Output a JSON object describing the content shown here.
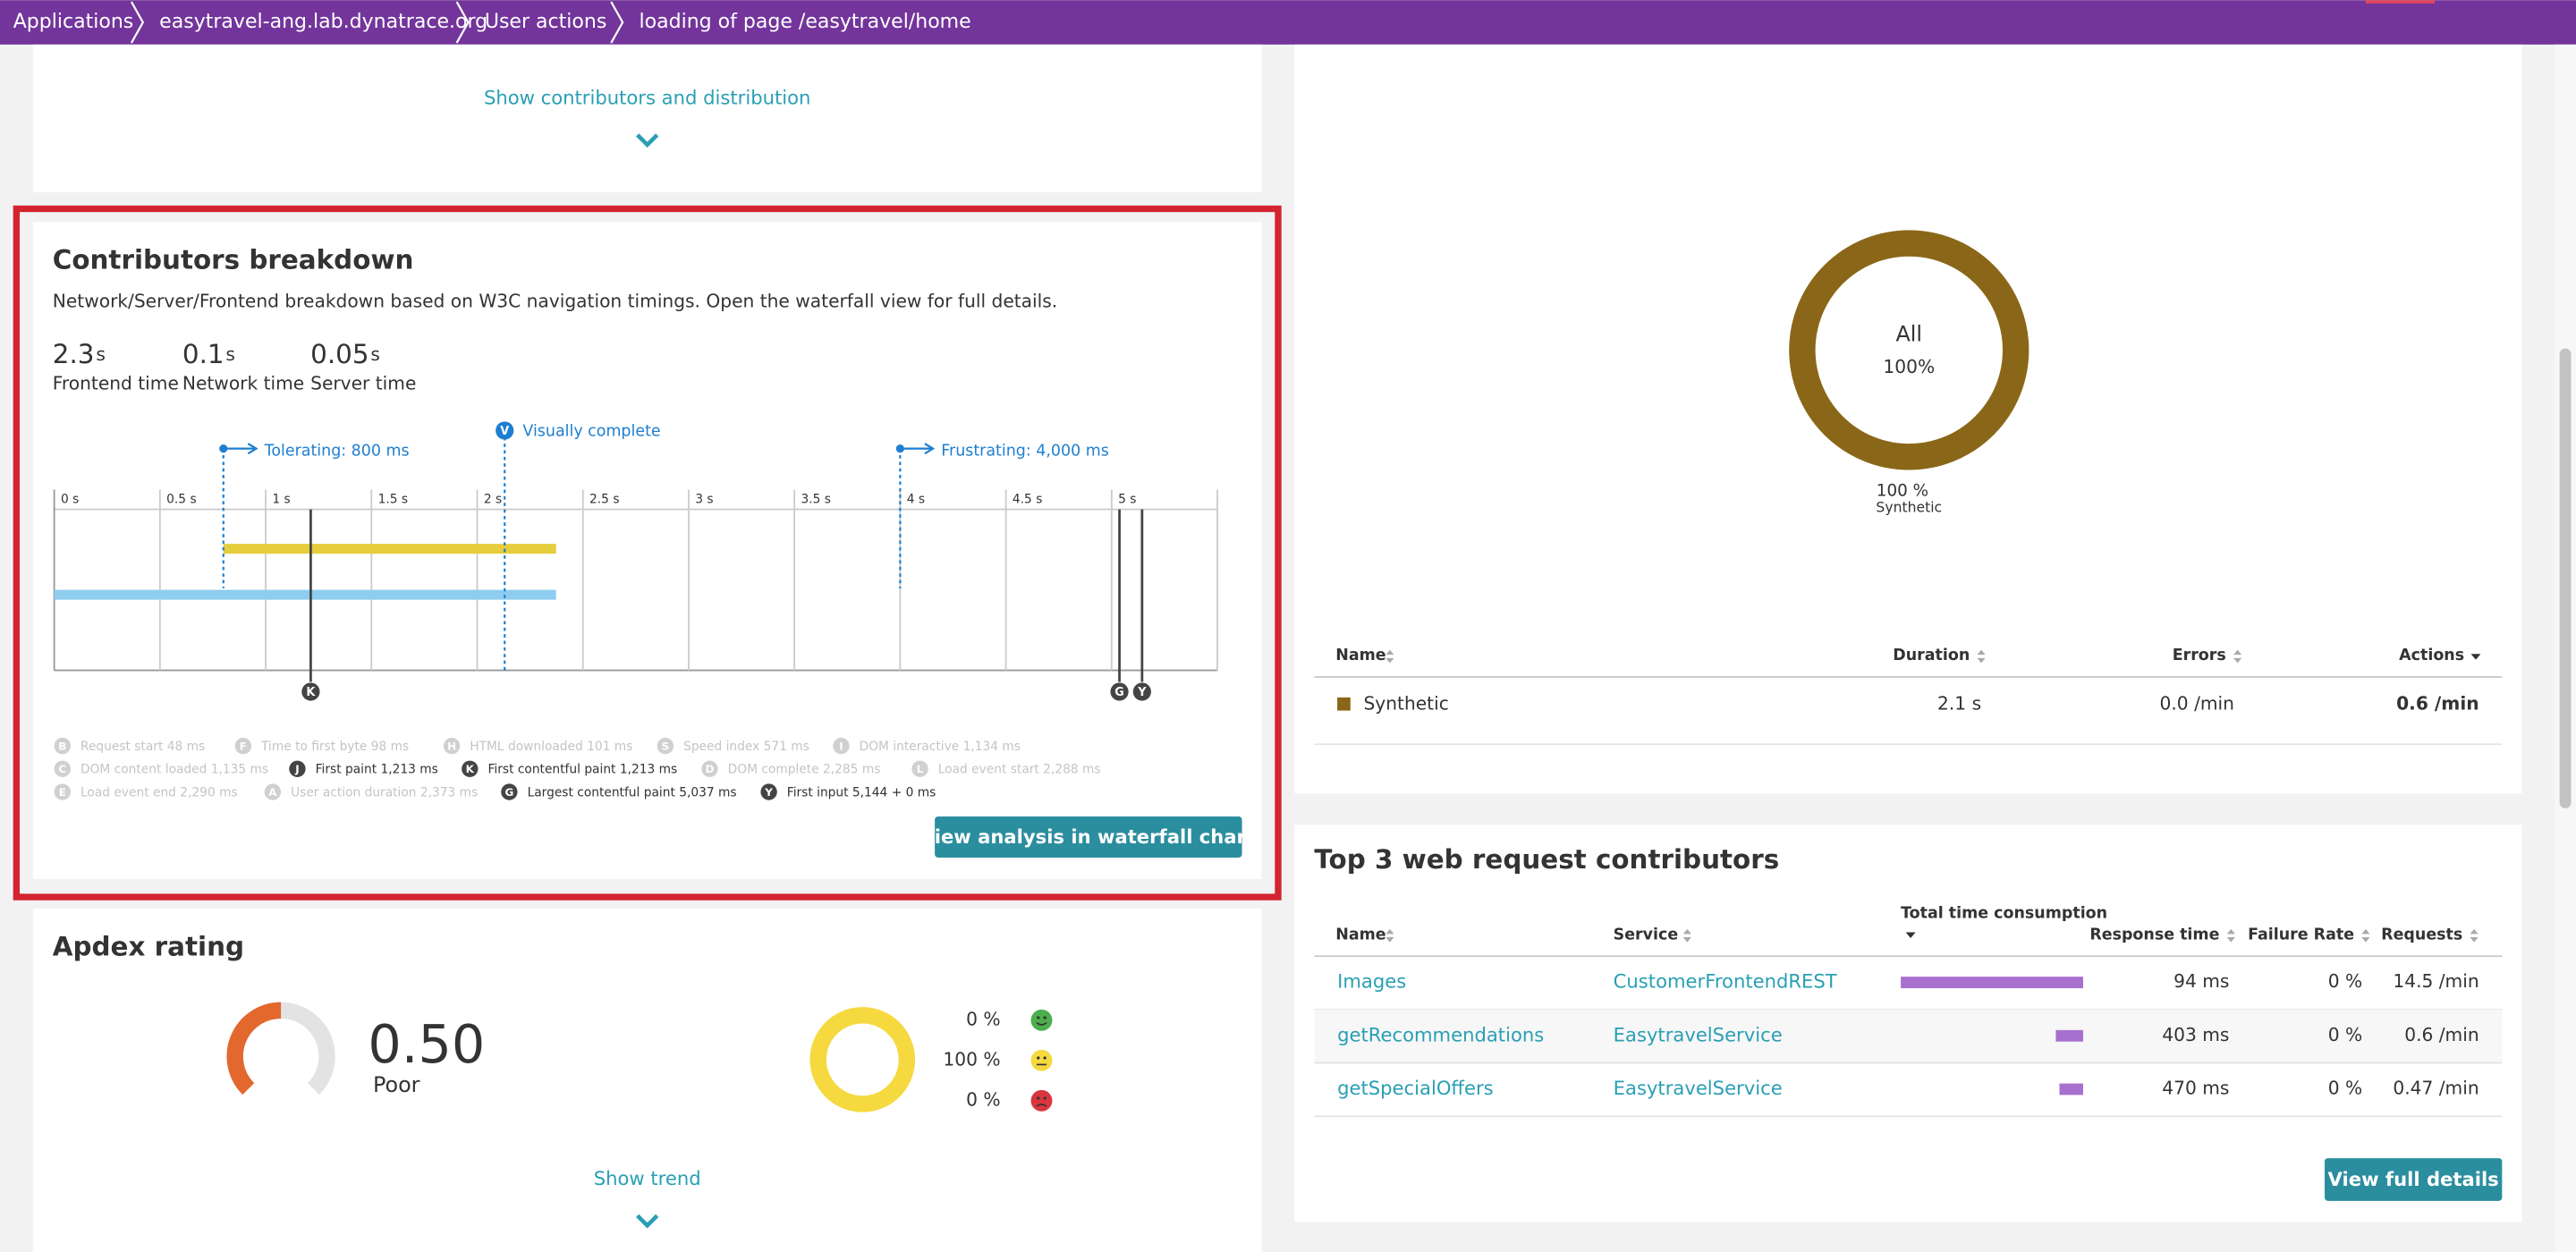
{
  "breadcrumbs": [
    "Applications",
    "easytravel-ang.lab.dynatrace.org",
    "User actions",
    "loading of page /easytravel/home"
  ],
  "top_link": "Show contributors and distribution",
  "contributors": {
    "title": "Contributors breakdown",
    "description": "Network/Server/Frontend breakdown based on W3C navigation timings. Open the waterfall view for full details.",
    "metrics": [
      {
        "value": "2.3",
        "unit": "s",
        "label": "Frontend time"
      },
      {
        "value": "0.1",
        "unit": "s",
        "label": "Network time"
      },
      {
        "value": "0.05",
        "unit": "s",
        "label": "Server time"
      }
    ],
    "waterfall": {
      "xlim": [
        0,
        5.5
      ],
      "xticks": [
        {
          "value": 0,
          "label": "0 s"
        },
        {
          "value": 0.5,
          "label": "0.5 s"
        },
        {
          "value": 1,
          "label": "1 s"
        },
        {
          "value": 1.5,
          "label": "1.5 s"
        },
        {
          "value": 2,
          "label": "2 s"
        },
        {
          "value": 2.5,
          "label": "2.5 s"
        },
        {
          "value": 3,
          "label": "3 s"
        },
        {
          "value": 3.5,
          "label": "3.5 s"
        },
        {
          "value": 4,
          "label": "4 s"
        },
        {
          "value": 4.5,
          "label": "4.5 s"
        },
        {
          "value": 5,
          "label": "5 s"
        }
      ],
      "thresholds": [
        {
          "label": "Tolerating: 800 ms",
          "value": 0.8
        },
        {
          "label": "Frustrating: 4,000 ms",
          "value": 4
        }
      ],
      "visually_complete": {
        "badge": "V",
        "label": "Visually complete",
        "value": 2.13
      },
      "bars": [
        {
          "start": 0.8,
          "end": 2.373,
          "color": "#e6cd3c"
        },
        {
          "start": 0,
          "end": 2.373,
          "color": "#8ecdf0"
        }
      ],
      "events": [
        {
          "badge": "K",
          "value": 1.213
        },
        {
          "badge": "G",
          "value": 5.037
        },
        {
          "badge": "Y",
          "value": 5.144
        }
      ]
    },
    "legend": [
      {
        "badge": "B",
        "text": "Request start 48 ms",
        "active": false
      },
      {
        "badge": "F",
        "text": "Time to first byte 98 ms",
        "active": false
      },
      {
        "badge": "H",
        "text": "HTML downloaded 101 ms",
        "active": false
      },
      {
        "badge": "S",
        "text": "Speed index 571 ms",
        "active": false
      },
      {
        "badge": "I",
        "text": "DOM interactive 1,134 ms",
        "active": false
      },
      {
        "badge": "C",
        "text": "DOM content loaded 1,135 ms",
        "active": false
      },
      {
        "badge": "J",
        "text": "First paint 1,213 ms",
        "active": true
      },
      {
        "badge": "K",
        "text": "First contentful paint 1,213 ms",
        "active": true
      },
      {
        "badge": "D",
        "text": "DOM complete 2,285 ms",
        "active": false
      },
      {
        "badge": "L",
        "text": "Load event start 2,288 ms",
        "active": false
      },
      {
        "badge": "E",
        "text": "Load event end 2,290 ms",
        "active": false
      },
      {
        "badge": "A",
        "text": "User action duration 2,373 ms",
        "active": false
      },
      {
        "badge": "G",
        "text": "Largest contentful paint 5,037 ms",
        "active": true
      },
      {
        "badge": "Y",
        "text": "First input 5,144 + 0 ms",
        "active": true
      }
    ],
    "button": "View analysis in waterfall chart"
  },
  "apdex": {
    "title": "Apdex rating",
    "score": "0.50",
    "gauge": 0.5,
    "rating": "Poor",
    "donut": [
      {
        "label": "0 %",
        "value": 0,
        "color": "#4cae4c"
      },
      {
        "label": "100 %",
        "value": 100,
        "color": "#f5d93f"
      },
      {
        "label": "0 %",
        "value": 0,
        "color": "#d9363e"
      }
    ],
    "link": "Show trend"
  },
  "distribution": {
    "donut": {
      "label": "All",
      "value": 100,
      "value_label": "100%",
      "color": "#8a6718"
    },
    "caption_value": "100 %",
    "caption_label": "Synthetic",
    "columns": [
      "Name",
      "Duration",
      "Errors",
      "Actions"
    ],
    "rows": [
      [
        "Synthetic",
        "2.1 s",
        "0.0 /min",
        "0.6 /min"
      ]
    ]
  },
  "top3": {
    "title": "Top 3 web request contributors",
    "columns": [
      "Name",
      "Service",
      "Total time consumption",
      "Response time",
      "Failure Rate",
      "Requests"
    ],
    "rows": [
      {
        "name": "Images",
        "service": "CustomerFrontendREST",
        "share": 100,
        "response": "94 ms",
        "failure": "0 %",
        "requests": "14.5 /min"
      },
      {
        "name": "getRecommendations",
        "service": "EasytravelService",
        "share": 15,
        "response": "403 ms",
        "failure": "0 %",
        "requests": "0.6 /min"
      },
      {
        "name": "getSpecialOffers",
        "service": "EasytravelService",
        "share": 13,
        "response": "470 ms",
        "failure": "0 %",
        "requests": "0.47 /min"
      }
    ],
    "button": "View full details"
  }
}
